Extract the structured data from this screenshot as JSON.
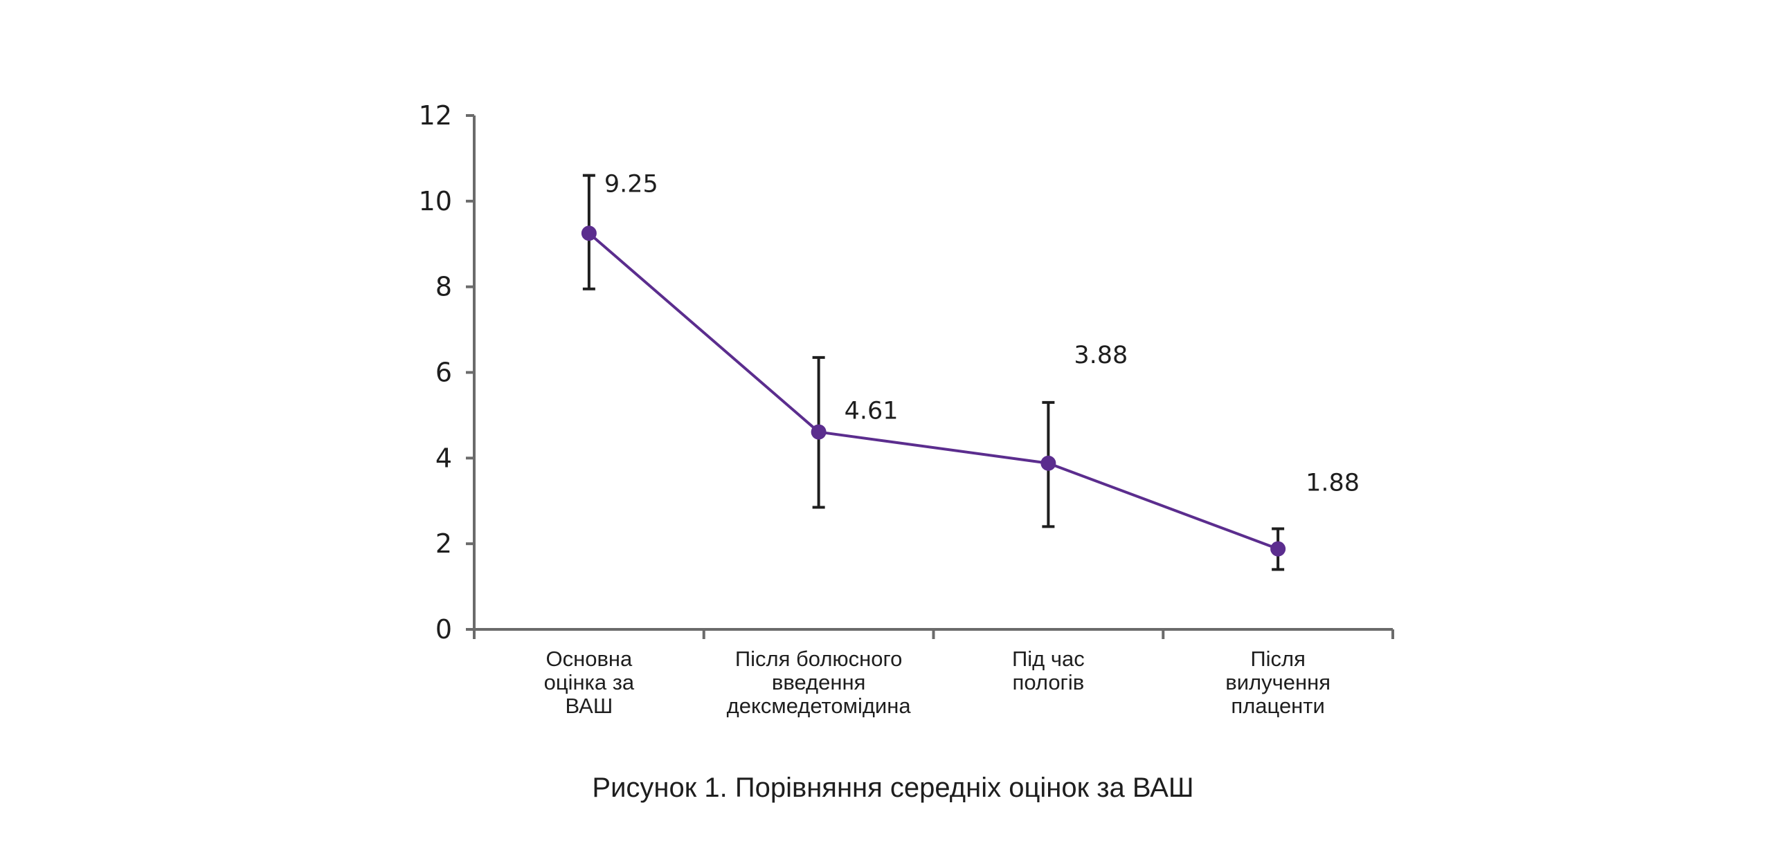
{
  "chart_data": {
    "type": "line",
    "title": "",
    "caption": "Рисунок 1. Порівняння середніх оцінок за ВАШ",
    "xlabel": "",
    "ylabel": "",
    "categories": [
      [
        "Основна",
        "оцінка за",
        "ВАШ"
      ],
      [
        "Після болюсного",
        "введення",
        "дексмедетомідина"
      ],
      [
        "Під час",
        "пологів"
      ],
      [
        "Після",
        "вилучення",
        "плаценти"
      ]
    ],
    "series": [
      {
        "values": [
          9.25,
          4.61,
          3.88,
          1.88
        ],
        "error_low": [
          7.95,
          2.85,
          2.4,
          1.4
        ],
        "error_high": [
          10.6,
          6.35,
          5.3,
          2.35
        ],
        "data_labels": [
          "9.25",
          "4.61",
          "3.88",
          "1.88"
        ]
      }
    ],
    "ylim": [
      0,
      12
    ],
    "yticks": [
      "0",
      "2",
      "4",
      "6",
      "8",
      "10",
      "12"
    ],
    "grid": false,
    "legend": "none",
    "colors": {
      "line": "#5b2d8e",
      "marker": "#5b2d8e",
      "error_bar": "#1e1e1e",
      "axis": "#6b6b6b"
    }
  }
}
